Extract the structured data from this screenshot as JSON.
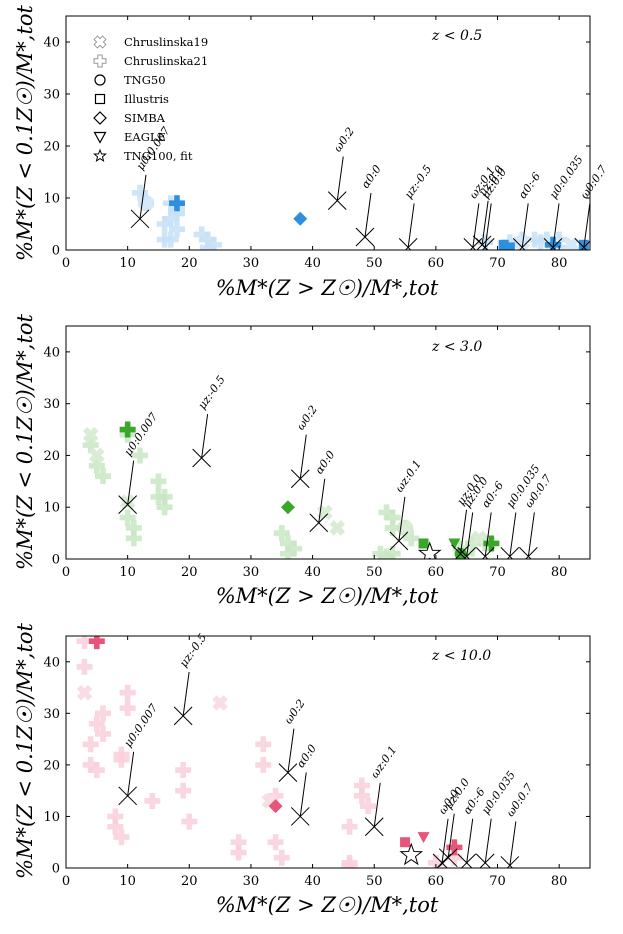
{
  "chart_data": [
    {
      "type": "scatter",
      "id": "p0",
      "title": "z < 0.5",
      "xlabel": "%M*(Z > Z☉)/M*,tot",
      "ylabel": "%M*(Z < 0.1Z☉)/M*,tot",
      "xlim": [
        0,
        85
      ],
      "ylim": [
        0,
        45
      ],
      "xticks": [
        0,
        10,
        20,
        30,
        40,
        50,
        60,
        70,
        80
      ],
      "yticks": [
        0,
        10,
        20,
        30,
        40
      ],
      "color": "#2f8fdf",
      "legend": [
        {
          "marker": "x-fat",
          "label": "Chruslinska19"
        },
        {
          "marker": "plus",
          "label": "Chruslinska21"
        },
        {
          "marker": "circle",
          "label": "TNG50"
        },
        {
          "marker": "square",
          "label": "Illustris"
        },
        {
          "marker": "diamond",
          "label": "SIMBA"
        },
        {
          "marker": "triangle-down",
          "label": "EAGLE"
        },
        {
          "marker": "star",
          "label": "TNG100, fit"
        }
      ],
      "chruslinska19": [
        [
          13,
          9
        ],
        [
          74,
          1.5
        ],
        [
          79,
          1
        ],
        [
          82,
          1
        ]
      ],
      "chruslinska21": [
        [
          12,
          11
        ],
        [
          13,
          9
        ],
        [
          16,
          5
        ],
        [
          17,
          6
        ],
        [
          17,
          9
        ],
        [
          18,
          8
        ],
        [
          18,
          7
        ],
        [
          16,
          2
        ],
        [
          17,
          2
        ],
        [
          18,
          4
        ],
        [
          22,
          3
        ],
        [
          23,
          2
        ],
        [
          24,
          1
        ],
        [
          23,
          0.5
        ],
        [
          68,
          1.5
        ],
        [
          72,
          1.5
        ],
        [
          74,
          2
        ],
        [
          76,
          2
        ],
        [
          77,
          1.5
        ],
        [
          78,
          2
        ],
        [
          79,
          1
        ],
        [
          80,
          2
        ],
        [
          80,
          0.5
        ]
      ],
      "highlight_plus": [
        [
          18,
          9
        ],
        [
          79,
          1
        ]
      ],
      "simba": [
        [
          38,
          6
        ]
      ],
      "illustris": [
        [
          71,
          1
        ],
        [
          72,
          0.5
        ],
        [
          84,
          1
        ]
      ],
      "eagle": [],
      "tng100": [],
      "fit_points": [
        {
          "x": 12,
          "y": 6,
          "label": "μ0:0.007"
        },
        {
          "x": 44,
          "y": 9.5,
          "label": "ω0:2"
        },
        {
          "x": 48.5,
          "y": 2.5,
          "label": "α0:0"
        },
        {
          "x": 55.5,
          "y": 0.5,
          "label": "μz:-0.5"
        },
        {
          "x": 66,
          "y": 0.5,
          "label": "ωz:0.1"
        },
        {
          "x": 67.5,
          "y": 1,
          "label": "μz:0.0"
        },
        {
          "x": 68,
          "y": 0.5,
          "label": "μz:0.0"
        },
        {
          "x": 74,
          "y": 0.5,
          "label": "α0:-6"
        },
        {
          "x": 79,
          "y": 0.5,
          "label": "μ0:0.035"
        },
        {
          "x": 84,
          "y": 0.5,
          "label": "ω0:0.7"
        }
      ]
    },
    {
      "type": "scatter",
      "id": "p1",
      "title": "z < 3.0",
      "xlabel": "%M*(Z > Z☉)/M*,tot",
      "ylabel": "%M*(Z < 0.1Z☉)/M*,tot",
      "xlim": [
        0,
        85
      ],
      "ylim": [
        0,
        45
      ],
      "xticks": [
        0,
        10,
        20,
        30,
        40,
        50,
        60,
        70,
        80
      ],
      "yticks": [
        0,
        10,
        20,
        30,
        40
      ],
      "color": "#3aa62a",
      "chruslinska19": [
        [
          4,
          24
        ],
        [
          5,
          20
        ],
        [
          10,
          11
        ],
        [
          42,
          9
        ],
        [
          44,
          6
        ],
        [
          55,
          6
        ],
        [
          67,
          4
        ]
      ],
      "chruslinska21": [
        [
          4,
          22
        ],
        [
          5,
          18
        ],
        [
          6,
          16
        ],
        [
          10,
          24
        ],
        [
          10,
          8
        ],
        [
          11,
          6
        ],
        [
          11,
          4
        ],
        [
          12,
          20
        ],
        [
          15,
          15
        ],
        [
          15,
          12
        ],
        [
          16,
          12
        ],
        [
          16,
          10
        ],
        [
          35,
          5
        ],
        [
          36,
          3
        ],
        [
          37,
          2
        ],
        [
          36,
          1
        ],
        [
          52,
          9
        ],
        [
          53,
          8
        ],
        [
          53,
          6
        ],
        [
          55,
          6
        ],
        [
          56,
          4
        ],
        [
          51,
          1
        ],
        [
          52,
          0.5
        ],
        [
          53,
          1
        ],
        [
          64,
          2
        ],
        [
          65,
          1
        ],
        [
          66,
          3
        ],
        [
          68,
          3
        ]
      ],
      "highlight_plus": [
        [
          10,
          25
        ],
        [
          69,
          3
        ]
      ],
      "simba": [
        [
          36,
          10
        ]
      ],
      "illustris": [
        [
          58,
          3
        ]
      ],
      "eagle": [
        [
          63,
          3
        ]
      ],
      "tng50": [
        [
          64,
          1
        ]
      ],
      "tng100": [
        [
          59,
          1
        ]
      ],
      "fit_points": [
        {
          "x": 10,
          "y": 10.5,
          "label": "μ0:0.007"
        },
        {
          "x": 22,
          "y": 19.5,
          "label": "μz:-0.5"
        },
        {
          "x": 38,
          "y": 15.5,
          "label": "ω0:2"
        },
        {
          "x": 41,
          "y": 7,
          "label": "α0:0"
        },
        {
          "x": 54,
          "y": 3.5,
          "label": "ωz:0.1"
        },
        {
          "x": 64,
          "y": 1,
          "label": "μz:0.0"
        },
        {
          "x": 65,
          "y": 0.5,
          "label": "μz:0.0"
        },
        {
          "x": 68,
          "y": 0.5,
          "label": "α0:-6"
        },
        {
          "x": 72,
          "y": 0.5,
          "label": "μ0:0.035"
        },
        {
          "x": 75,
          "y": 0.5,
          "label": "ω0:0.7"
        }
      ]
    },
    {
      "type": "scatter",
      "id": "p2",
      "title": "z < 10.0",
      "xlabel": "%M*(Z > Z☉)/M*,tot",
      "ylabel": "%M*(Z < 0.1Z☉)/M*,tot",
      "xlim": [
        0,
        85
      ],
      "ylim": [
        0,
        45
      ],
      "xticks": [
        0,
        10,
        20,
        30,
        40,
        50,
        60,
        70,
        80
      ],
      "yticks": [
        0,
        10,
        20,
        30,
        40
      ],
      "color": "#e8557a",
      "chruslinska19": [
        [
          3,
          34
        ],
        [
          25,
          32
        ],
        [
          33,
          13
        ]
      ],
      "chruslinska21": [
        [
          3,
          44
        ],
        [
          3,
          39
        ],
        [
          4,
          24
        ],
        [
          4,
          20
        ],
        [
          5,
          28
        ],
        [
          5,
          19
        ],
        [
          6,
          30
        ],
        [
          6,
          26
        ],
        [
          9,
          22
        ],
        [
          9,
          21
        ],
        [
          8,
          10
        ],
        [
          8,
          8
        ],
        [
          9,
          6
        ],
        [
          10,
          34
        ],
        [
          10,
          31
        ],
        [
          14,
          13
        ],
        [
          19,
          19
        ],
        [
          19,
          15
        ],
        [
          20,
          9
        ],
        [
          28,
          5
        ],
        [
          28,
          3
        ],
        [
          32,
          24
        ],
        [
          32,
          20
        ],
        [
          34,
          14
        ],
        [
          34,
          5
        ],
        [
          35,
          2
        ],
        [
          46,
          8
        ],
        [
          46,
          1
        ],
        [
          46,
          0.5
        ],
        [
          48,
          16
        ],
        [
          48,
          14
        ],
        [
          49,
          12
        ],
        [
          60,
          1
        ],
        [
          63,
          2
        ]
      ],
      "highlight_plus": [
        [
          5,
          44
        ],
        [
          63,
          4
        ]
      ],
      "simba": [
        [
          34,
          12
        ]
      ],
      "illustris": [
        [
          55,
          5
        ]
      ],
      "eagle": [
        [
          58,
          6
        ]
      ],
      "tng100": [
        [
          56,
          2.5
        ]
      ],
      "fit_points": [
        {
          "x": 10,
          "y": 14,
          "label": "μ0:0.007"
        },
        {
          "x": 19,
          "y": 29.5,
          "label": "μz:-0.5"
        },
        {
          "x": 36,
          "y": 18.5,
          "label": "ω0:2"
        },
        {
          "x": 38,
          "y": 10,
          "label": "α0:0"
        },
        {
          "x": 50,
          "y": 8,
          "label": "ωz:0.1"
        },
        {
          "x": 61,
          "y": 1,
          "label": "ω0:0"
        },
        {
          "x": 62,
          "y": 2,
          "label": "μz:0.0"
        },
        {
          "x": 65,
          "y": 1,
          "label": "α0:-6"
        },
        {
          "x": 68,
          "y": 1,
          "label": "μ0:0.035"
        },
        {
          "x": 72,
          "y": 0.5,
          "label": "ω0:0.7"
        }
      ]
    }
  ]
}
